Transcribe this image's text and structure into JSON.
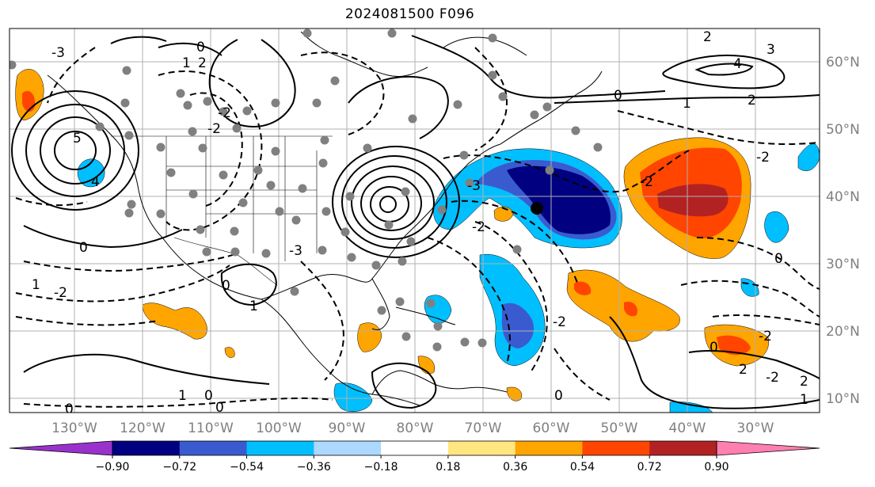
{
  "title": "2024081500 F096",
  "lon_labels": [
    "130°W",
    "120°W",
    "110°W",
    "100°W",
    "90°W",
    "80°W",
    "70°W",
    "60°W",
    "50°W",
    "40°W",
    "30°W"
  ],
  "lat_labels": [
    "60°N",
    "50°N",
    "40°N",
    "30°N",
    "20°N",
    "10°N"
  ],
  "colorbar": {
    "colors": [
      "#9932cc",
      "#000080",
      "#3a5bd0",
      "#00bfff",
      "#add8ff",
      "#ffffff",
      "#ffe680",
      "#ffa500",
      "#ff4500",
      "#b22222",
      "#ff7fb0"
    ],
    "tick_labels": [
      "−0.90",
      "−0.72",
      "−0.54",
      "−0.36",
      "−0.18",
      "0.18",
      "0.36",
      "0.54",
      "0.72",
      "0.90"
    ]
  },
  "contour_labels": [
    "3",
    "2",
    "1",
    "0",
    "-1",
    "-2",
    "-3",
    "4",
    "5"
  ],
  "marker": {
    "label": "analysis point",
    "lon": -60.5,
    "lat": 38.5
  }
}
